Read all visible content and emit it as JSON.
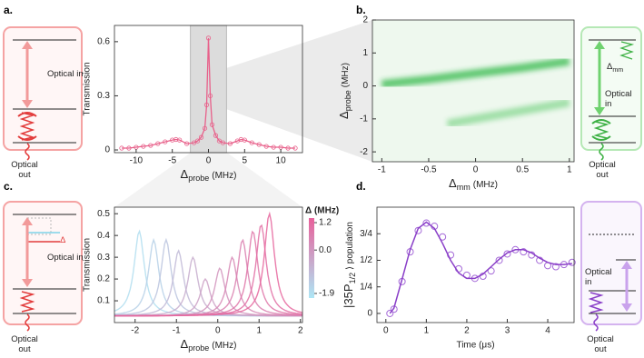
{
  "diagrams": {
    "a": {
      "panel": "a.",
      "in": "Optical in",
      "out": "Optical out"
    },
    "b": {
      "panel": "b.",
      "in": "Optical in",
      "out": "Optical out",
      "detuning": {
        "main": "Δ",
        "sub": "mm"
      }
    },
    "c": {
      "panel": "c.",
      "in": "Optical in",
      "out": "Optical out",
      "delta": "Δ"
    },
    "d": {
      "panel": "d.",
      "in": "Optical in",
      "out": "Optical out"
    }
  },
  "chart_data": [
    {
      "type": "line",
      "ylabel": "Transmission",
      "xlabel": {
        "main": "Δ",
        "sub": "probe",
        "rest": "(MHz)"
      },
      "xlim": [
        -13,
        13
      ],
      "ylim": [
        -0.015,
        0.69
      ],
      "xticks": [
        -10,
        -5,
        0,
        5,
        10
      ],
      "yticks": [
        0,
        0.3,
        0.6
      ],
      "highlight_x": [
        -2.5,
        2.5
      ],
      "color": "#e8608a",
      "x": [
        -12,
        -11,
        -10,
        -9,
        -8,
        -7,
        -6,
        -5,
        -4.5,
        -4,
        -3,
        -2,
        -1.5,
        -1,
        -0.5,
        -0.25,
        0,
        0.25,
        0.5,
        1,
        1.5,
        2,
        3,
        4,
        4.5,
        5,
        6,
        7,
        8,
        9,
        10,
        11,
        12
      ],
      "values": [
        0.01,
        0.01,
        0.015,
        0.02,
        0.025,
        0.035,
        0.045,
        0.055,
        0.058,
        0.055,
        0.035,
        0.04,
        0.05,
        0.07,
        0.12,
        0.25,
        0.62,
        0.3,
        0.14,
        0.08,
        0.05,
        0.04,
        0.035,
        0.05,
        0.058,
        0.055,
        0.04,
        0.03,
        0.02,
        0.015,
        0.015,
        0.01,
        0.01
      ]
    },
    {
      "type": "heatmap",
      "ylabel": {
        "main": "Δ",
        "sub": "probe",
        "rest": "(MHz)"
      },
      "xlabel": {
        "main": "Δ",
        "sub": "mm",
        "rest": "(MHz)"
      },
      "xlim": [
        -1.1,
        1.05
      ],
      "ylim": [
        -2.3,
        2.0
      ],
      "xticks": [
        -1,
        -0.5,
        0,
        0.5,
        1
      ],
      "yticks": [
        -2,
        -1,
        0,
        1,
        2
      ],
      "series": [
        {
          "color": "#22b33a",
          "x": [
            -1,
            -0.5,
            0,
            0.5,
            1
          ],
          "values": [
            0.05,
            0.2,
            0.38,
            0.55,
            0.75
          ]
        },
        {
          "color": "#3cc050",
          "x": [
            -0.3,
            0,
            0.5,
            1
          ],
          "values": [
            -1.15,
            -1.0,
            -0.75,
            -0.5
          ]
        }
      ]
    },
    {
      "type": "lorentzian",
      "ylabel": "Transmission",
      "xlabel": {
        "main": "Δ",
        "sub": "probe",
        "rest": "(MHz)"
      },
      "xlim": [
        -2.5,
        2.05
      ],
      "ylim": [
        0,
        0.53
      ],
      "xticks": [
        -2,
        -1,
        0,
        1,
        2
      ],
      "yticks": [
        0.1,
        0.2,
        0.3,
        0.4,
        0.5
      ],
      "baseline": 0.03,
      "width": 0.3,
      "peaks": [
        {
          "center": -1.9,
          "height": 0.42
        },
        {
          "center": -1.55,
          "height": 0.38
        },
        {
          "center": -1.25,
          "height": 0.38
        },
        {
          "center": -0.95,
          "height": 0.33
        },
        {
          "center": -0.6,
          "height": 0.3
        },
        {
          "center": -0.3,
          "height": 0.2
        },
        {
          "center": 0.05,
          "height": 0.25
        },
        {
          "center": 0.35,
          "height": 0.3
        },
        {
          "center": 0.6,
          "height": 0.38
        },
        {
          "center": 0.85,
          "height": 0.42
        },
        {
          "center": 1.05,
          "height": 0.45
        },
        {
          "center": 1.25,
          "height": 0.5
        }
      ],
      "colorbar": {
        "label": "Δ (MHz)",
        "lim": [
          -2.1,
          1.4
        ],
        "colors": [
          "#aee6f5",
          "#e8609a"
        ],
        "ticks": [
          1.2,
          {
            "value": 0,
            "label": "0.0"
          },
          -1.9
        ]
      }
    },
    {
      "type": "scatter",
      "ylabel": {
        "main": "|35P",
        "sub": "1/2",
        "rest": "⟩  population"
      },
      "xlabel": "Time (μs)",
      "xlim": [
        -0.22,
        4.65
      ],
      "ylim": [
        -0.086,
        1.0
      ],
      "xticks": [
        0,
        1,
        2,
        3,
        4
      ],
      "yticks": [
        0,
        {
          "value": 0.25,
          "label": "1/4"
        },
        {
          "value": 0.5,
          "label": "1/2"
        },
        {
          "value": 0.75,
          "label": "3/4"
        }
      ],
      "x": [
        0.1,
        0.2,
        0.4,
        0.6,
        0.8,
        1.0,
        1.2,
        1.4,
        1.6,
        1.8,
        2.0,
        2.2,
        2.4,
        2.6,
        2.8,
        3.0,
        3.2,
        3.4,
        3.6,
        3.8,
        4.0,
        4.2,
        4.4,
        4.6
      ],
      "series": [
        {
          "style": "markers",
          "color": "#a56ad8",
          "values": [
            0.0,
            0.04,
            0.3,
            0.58,
            0.78,
            0.85,
            0.82,
            0.72,
            0.55,
            0.42,
            0.36,
            0.33,
            0.35,
            0.4,
            0.5,
            0.56,
            0.6,
            0.58,
            0.55,
            0.5,
            0.45,
            0.44,
            0.46,
            0.48
          ]
        },
        {
          "style": "line",
          "color": "#8a3fc8",
          "values": [
            0,
            0.05,
            0.32,
            0.6,
            0.8,
            0.86,
            0.8,
            0.66,
            0.5,
            0.38,
            0.33,
            0.33,
            0.37,
            0.44,
            0.51,
            0.57,
            0.6,
            0.6,
            0.57,
            0.52,
            0.48,
            0.46,
            0.46,
            0.47
          ]
        }
      ]
    }
  ]
}
